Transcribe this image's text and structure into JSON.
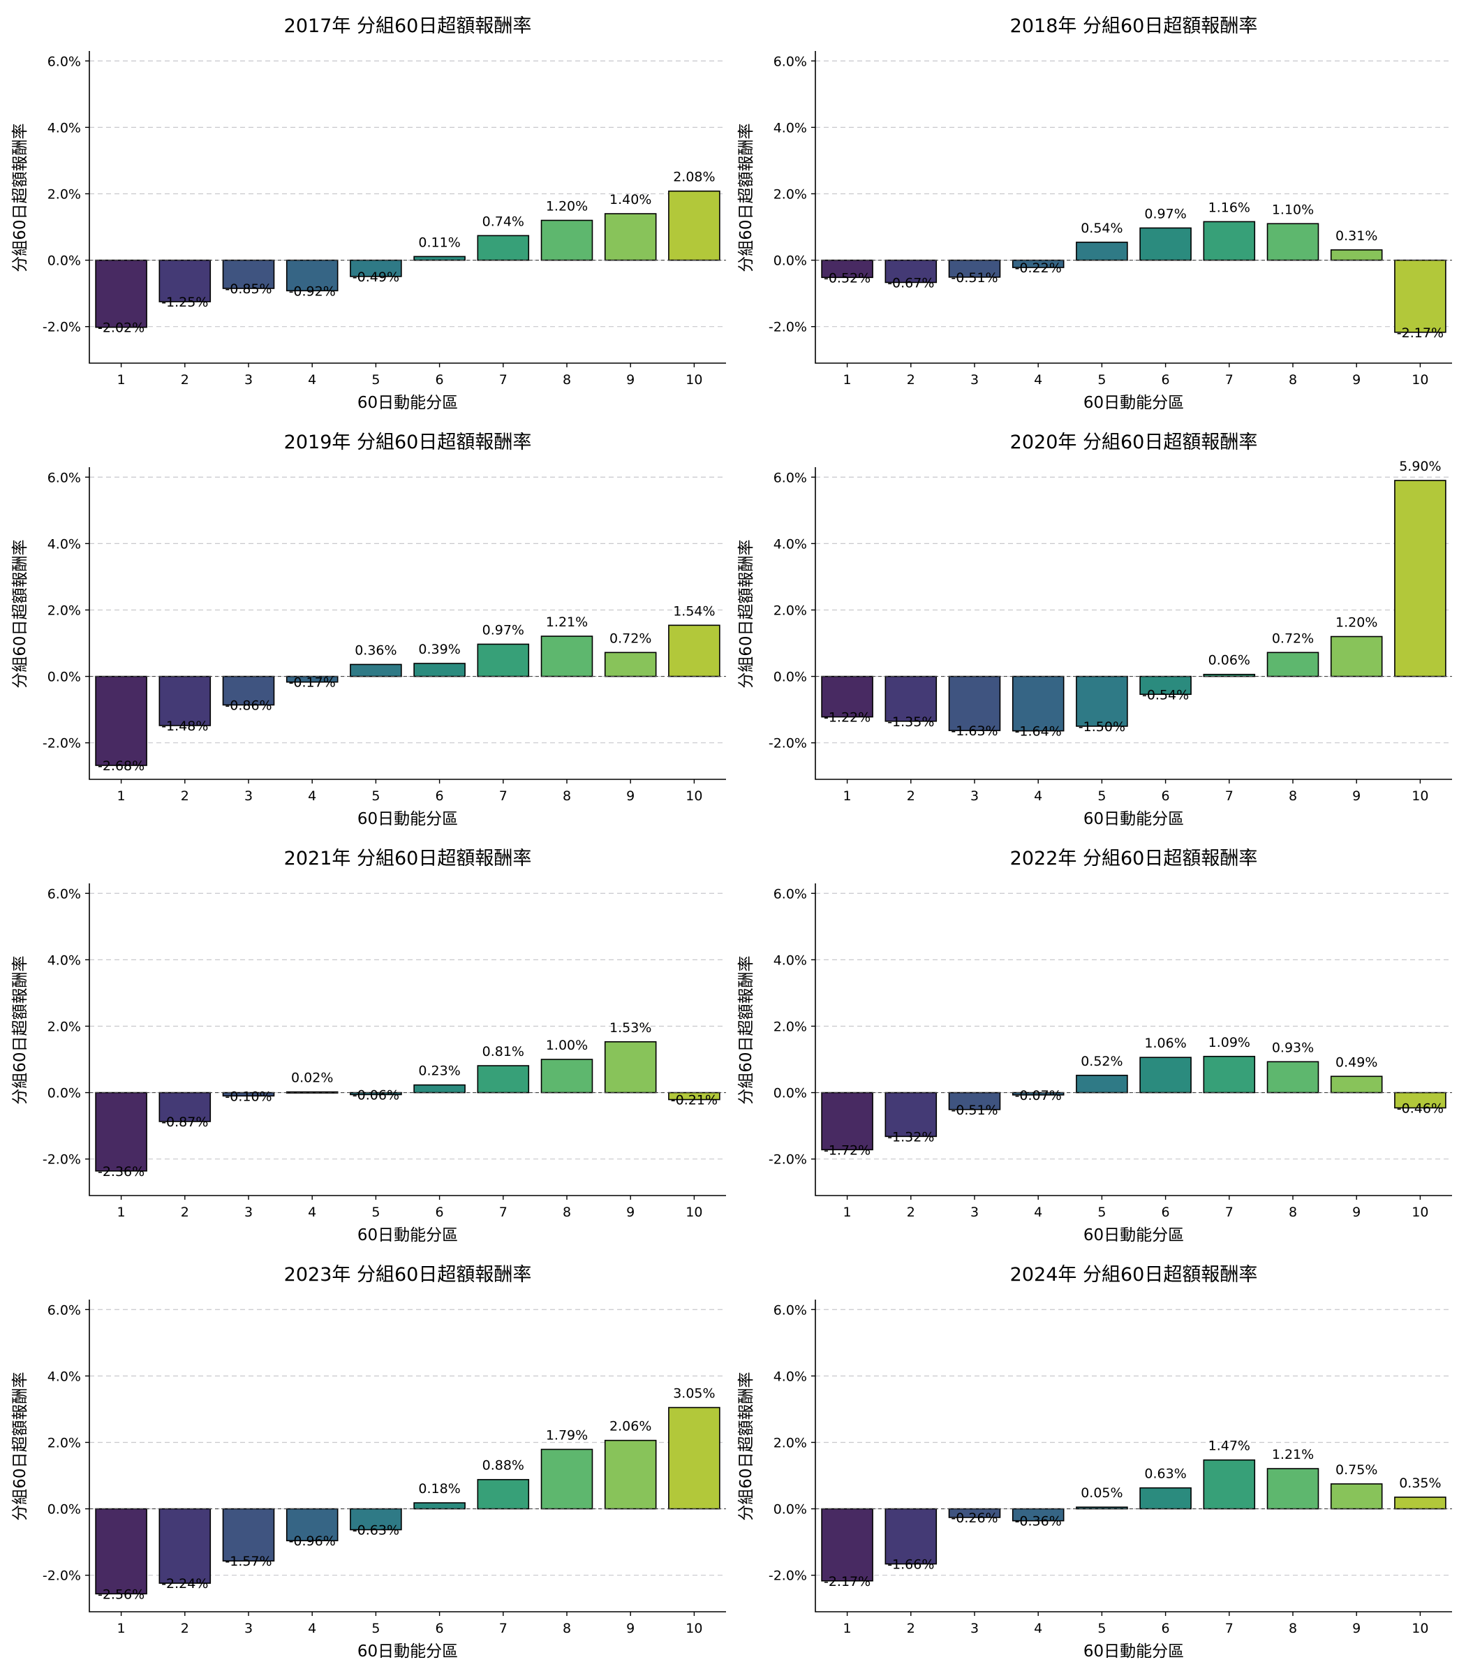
{
  "chart_data": [
    {
      "type": "bar",
      "title": "2017年 分組60日超額報酬率",
      "xlabel": "60日動能分區",
      "ylabel": "分組60日超額報酬率",
      "categories": [
        "1",
        "2",
        "3",
        "4",
        "5",
        "6",
        "7",
        "8",
        "9",
        "10"
      ],
      "values": [
        -2.02,
        -1.25,
        -0.85,
        -0.92,
        -0.49,
        0.11,
        0.74,
        1.2,
        1.4,
        2.08
      ],
      "value_labels": [
        "-2.02%",
        "-1.25%",
        "-0.85%",
        "-0.92%",
        "-0.49%",
        "0.11%",
        "0.74%",
        "1.20%",
        "1.40%",
        "2.08%"
      ],
      "ylim": [
        -3.1,
        6.3
      ],
      "yticks": [
        -2,
        0,
        2,
        4,
        6
      ],
      "ytick_labels": [
        "-2.0%",
        "0.0%",
        "2.0%",
        "4.0%",
        "6.0%"
      ],
      "grid": true
    },
    {
      "type": "bar",
      "title": "2018年 分組60日超額報酬率",
      "xlabel": "60日動能分區",
      "ylabel": "分組60日超額報酬率",
      "categories": [
        "1",
        "2",
        "3",
        "4",
        "5",
        "6",
        "7",
        "8",
        "9",
        "10"
      ],
      "values": [
        -0.52,
        -0.67,
        -0.51,
        -0.22,
        0.54,
        0.97,
        1.16,
        1.1,
        0.31,
        -2.17
      ],
      "value_labels": [
        "-0.52%",
        "-0.67%",
        "-0.51%",
        "-0.22%",
        "0.54%",
        "0.97%",
        "1.16%",
        "1.10%",
        "0.31%",
        "-2.17%"
      ],
      "ylim": [
        -3.1,
        6.3
      ],
      "yticks": [
        -2,
        0,
        2,
        4,
        6
      ],
      "ytick_labels": [
        "-2.0%",
        "0.0%",
        "2.0%",
        "4.0%",
        "6.0%"
      ],
      "grid": true
    },
    {
      "type": "bar",
      "title": "2019年 分組60日超額報酬率",
      "xlabel": "60日動能分區",
      "ylabel": "分組60日超額報酬率",
      "categories": [
        "1",
        "2",
        "3",
        "4",
        "5",
        "6",
        "7",
        "8",
        "9",
        "10"
      ],
      "values": [
        -2.68,
        -1.48,
        -0.86,
        -0.17,
        0.36,
        0.39,
        0.97,
        1.21,
        0.72,
        1.54
      ],
      "value_labels": [
        "-2.68%",
        "-1.48%",
        "-0.86%",
        "-0.17%",
        "0.36%",
        "0.39%",
        "0.97%",
        "1.21%",
        "0.72%",
        "1.54%"
      ],
      "ylim": [
        -3.1,
        6.3
      ],
      "yticks": [
        -2,
        0,
        2,
        4,
        6
      ],
      "ytick_labels": [
        "-2.0%",
        "0.0%",
        "2.0%",
        "4.0%",
        "6.0%"
      ],
      "grid": true
    },
    {
      "type": "bar",
      "title": "2020年 分組60日超額報酬率",
      "xlabel": "60日動能分區",
      "ylabel": "分組60日超額報酬率",
      "categories": [
        "1",
        "2",
        "3",
        "4",
        "5",
        "6",
        "7",
        "8",
        "9",
        "10"
      ],
      "values": [
        -1.22,
        -1.35,
        -1.63,
        -1.64,
        -1.5,
        -0.54,
        0.06,
        0.72,
        1.2,
        5.9
      ],
      "value_labels": [
        "-1.22%",
        "-1.35%",
        "-1.63%",
        "-1.64%",
        "-1.50%",
        "-0.54%",
        "0.06%",
        "0.72%",
        "1.20%",
        "5.90%"
      ],
      "ylim": [
        -3.1,
        6.3
      ],
      "yticks": [
        -2,
        0,
        2,
        4,
        6
      ],
      "ytick_labels": [
        "-2.0%",
        "0.0%",
        "2.0%",
        "4.0%",
        "6.0%"
      ],
      "grid": true
    },
    {
      "type": "bar",
      "title": "2021年 分組60日超額報酬率",
      "xlabel": "60日動能分區",
      "ylabel": "分組60日超額報酬率",
      "categories": [
        "1",
        "2",
        "3",
        "4",
        "5",
        "6",
        "7",
        "8",
        "9",
        "10"
      ],
      "values": [
        -2.36,
        -0.87,
        -0.1,
        0.02,
        -0.06,
        0.23,
        0.81,
        1.0,
        1.53,
        -0.21
      ],
      "value_labels": [
        "-2.36%",
        "-0.87%",
        "-0.10%",
        "0.02%",
        "-0.06%",
        "0.23%",
        "0.81%",
        "1.00%",
        "1.53%",
        "-0.21%"
      ],
      "ylim": [
        -3.1,
        6.3
      ],
      "yticks": [
        -2,
        0,
        2,
        4,
        6
      ],
      "ytick_labels": [
        "-2.0%",
        "0.0%",
        "2.0%",
        "4.0%",
        "6.0%"
      ],
      "grid": true
    },
    {
      "type": "bar",
      "title": "2022年 分組60日超額報酬率",
      "xlabel": "60日動能分區",
      "ylabel": "分組60日超額報酬率",
      "categories": [
        "1",
        "2",
        "3",
        "4",
        "5",
        "6",
        "7",
        "8",
        "9",
        "10"
      ],
      "values": [
        -1.72,
        -1.32,
        -0.51,
        -0.07,
        0.52,
        1.06,
        1.09,
        0.93,
        0.49,
        -0.46
      ],
      "value_labels": [
        "-1.72%",
        "-1.32%",
        "-0.51%",
        "-0.07%",
        "0.52%",
        "1.06%",
        "1.09%",
        "0.93%",
        "0.49%",
        "-0.46%"
      ],
      "ylim": [
        -3.1,
        6.3
      ],
      "yticks": [
        -2,
        0,
        2,
        4,
        6
      ],
      "ytick_labels": [
        "-2.0%",
        "0.0%",
        "2.0%",
        "4.0%",
        "6.0%"
      ],
      "grid": true
    },
    {
      "type": "bar",
      "title": "2023年 分組60日超額報酬率",
      "xlabel": "60日動能分區",
      "ylabel": "分組60日超額報酬率",
      "categories": [
        "1",
        "2",
        "3",
        "4",
        "5",
        "6",
        "7",
        "8",
        "9",
        "10"
      ],
      "values": [
        -2.56,
        -2.24,
        -1.57,
        -0.96,
        -0.63,
        0.18,
        0.88,
        1.79,
        2.06,
        3.05
      ],
      "value_labels": [
        "-2.56%",
        "-2.24%",
        "-1.57%",
        "-0.96%",
        "-0.63%",
        "0.18%",
        "0.88%",
        "1.79%",
        "2.06%",
        "3.05%"
      ],
      "ylim": [
        -3.1,
        6.3
      ],
      "yticks": [
        -2,
        0,
        2,
        4,
        6
      ],
      "ytick_labels": [
        "-2.0%",
        "0.0%",
        "2.0%",
        "4.0%",
        "6.0%"
      ],
      "grid": true
    },
    {
      "type": "bar",
      "title": "2024年 分組60日超額報酬率",
      "xlabel": "60日動能分區",
      "ylabel": "分組60日超額報酬率",
      "categories": [
        "1",
        "2",
        "3",
        "4",
        "5",
        "6",
        "7",
        "8",
        "9",
        "10"
      ],
      "values": [
        -2.17,
        -1.66,
        -0.26,
        -0.36,
        0.05,
        0.63,
        1.47,
        1.21,
        0.75,
        0.35
      ],
      "value_labels": [
        "-2.17%",
        "-1.66%",
        "-0.26%",
        "-0.36%",
        "0.05%",
        "0.63%",
        "1.47%",
        "1.21%",
        "0.75%",
        "0.35%"
      ],
      "ylim": [
        -3.1,
        6.3
      ],
      "yticks": [
        -2,
        0,
        2,
        4,
        6
      ],
      "ytick_labels": [
        "-2.0%",
        "0.0%",
        "2.0%",
        "4.0%",
        "6.0%"
      ],
      "grid": true
    }
  ],
  "colors": {
    "bars": [
      "#482a62",
      "#443a75",
      "#3f5480",
      "#366585",
      "#2f7a86",
      "#2b8b7e",
      "#37a078",
      "#5eb76e",
      "#88c35a",
      "#b2c83a"
    ],
    "grid": "#c8c8cc",
    "edge": "#000000"
  }
}
